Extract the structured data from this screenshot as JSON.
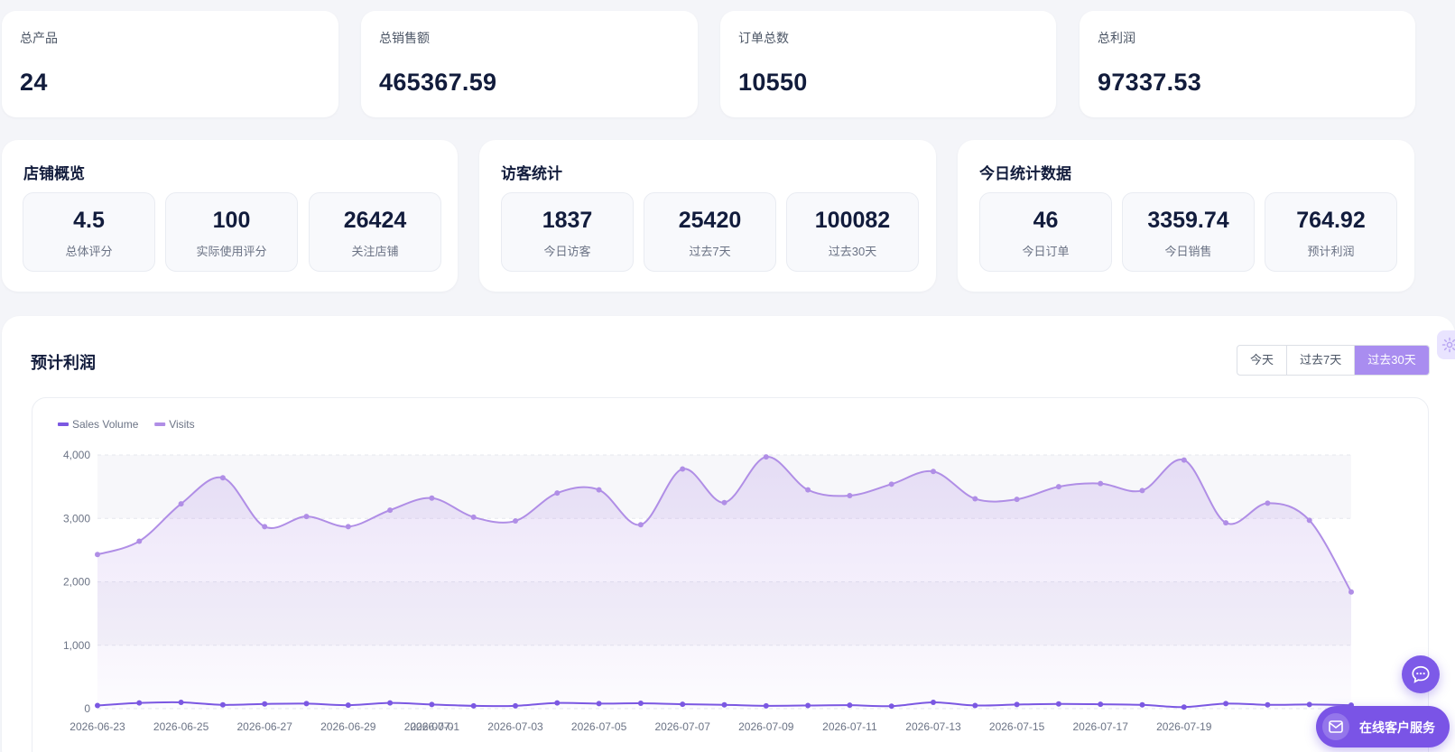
{
  "stats": [
    {
      "label": "总产品",
      "value": "24"
    },
    {
      "label": "总销售额",
      "value": "465367.59"
    },
    {
      "label": "订单总数",
      "value": "10550"
    },
    {
      "label": "总利润",
      "value": "97337.53"
    }
  ],
  "panels": [
    {
      "title": "店铺概览",
      "items": [
        {
          "value": "4.5",
          "label": "总体评分"
        },
        {
          "value": "100",
          "label": "实际使用评分"
        },
        {
          "value": "26424",
          "label": "关注店铺"
        }
      ]
    },
    {
      "title": "访客统计",
      "items": [
        {
          "value": "1837",
          "label": "今日访客"
        },
        {
          "value": "25420",
          "label": "过去7天"
        },
        {
          "value": "100082",
          "label": "过去30天"
        }
      ]
    },
    {
      "title": "今日统计数据",
      "items": [
        {
          "value": "46",
          "label": "今日订单"
        },
        {
          "value": "3359.74",
          "label": "今日销售"
        },
        {
          "value": "764.92",
          "label": "预计利润"
        }
      ]
    }
  ],
  "chart_section": {
    "title": "预计利润",
    "periods": [
      "今天",
      "过去7天",
      "过去30天"
    ],
    "active_period": "过去30天"
  },
  "service": {
    "label": "在线客户服务"
  },
  "colors": {
    "accent": "#a98df0",
    "sales": "#7b58e2",
    "visits": "#b08ee6"
  },
  "chart_data": {
    "type": "line",
    "legend_position": "top-left",
    "grid": true,
    "ylim": [
      0,
      4000
    ],
    "yticks": [
      "0",
      "1,000",
      "2,000",
      "3,000",
      "4,000"
    ],
    "x": [
      "2026-06-23",
      "2026-06-24",
      "2026-06-25",
      "2026-06-26",
      "2026-06-27",
      "2026-06-28",
      "2026-06-29",
      "2026-06-30",
      "2026-07-01",
      "2026-07-02",
      "2026-07-03",
      "2026-07-04",
      "2026-07-05",
      "2026-07-06",
      "2026-07-07",
      "2026-07-08",
      "2026-07-09",
      "2026-07-10",
      "2026-07-11",
      "2026-07-12",
      "2026-07-13",
      "2026-07-14",
      "2026-07-15",
      "2026-07-16",
      "2026-07-17",
      "2026-07-18",
      "2026-07-19",
      "2026-07-20",
      "2026-07-21",
      "2026-07-22",
      "2026-07-23"
    ],
    "xtick_labels": [
      "2026-06-23",
      "2026-06-25",
      "2026-06-27",
      "2026-06-29",
      "2026-07-01",
      "2026-07-03",
      "2026-07-05",
      "2026-07-07",
      "2026-07-09",
      "2026-07-11",
      "2026-07-13",
      "2026-07-15",
      "2026-07-17",
      "2026-07-19",
      "2026-07-"
    ],
    "series": [
      {
        "name": "Sales Volume",
        "values": [
          50,
          90,
          100,
          60,
          75,
          80,
          55,
          90,
          65,
          45,
          45,
          90,
          80,
          85,
          70,
          60,
          45,
          50,
          55,
          40,
          100,
          50,
          65,
          75,
          70,
          60,
          25,
          80,
          60,
          65,
          55
        ]
      },
      {
        "name": "Visits",
        "values": [
          2430,
          2640,
          3230,
          3640,
          2870,
          3030,
          2870,
          3130,
          3320,
          3020,
          2960,
          3400,
          3450,
          2900,
          3780,
          3250,
          3970,
          3450,
          3360,
          3540,
          3740,
          3310,
          3300,
          3500,
          3550,
          3440,
          3920,
          2930,
          3240,
          2970,
          1840
        ]
      }
    ]
  }
}
